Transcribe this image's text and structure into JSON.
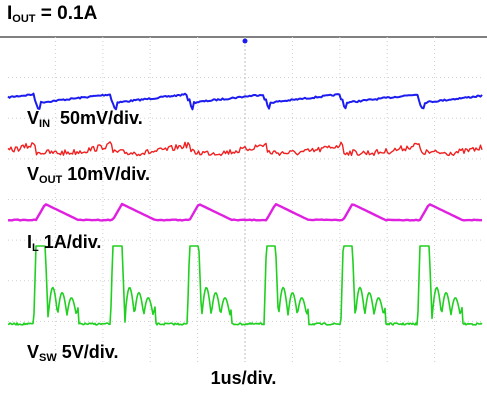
{
  "title": {
    "main": "I",
    "sub": "OUT",
    "rest": " = 0.1A"
  },
  "chart_data": {
    "type": "line",
    "title": "IOUT = 0.1A",
    "xlabel": "1us/div.",
    "x_divisions": 10,
    "switching_period_div": 1.62,
    "grid": true,
    "colors": {
      "vin": "#1c1cf0",
      "vout": "#f02020",
      "il": "#e020e0",
      "vsw": "#20d020",
      "grid": "#cfcfcf",
      "trigger": "#1c1cf0"
    },
    "series": [
      {
        "name": "VIN",
        "scale": "50mV/div."
      },
      {
        "name": "VOUT",
        "scale": "10mV/div."
      },
      {
        "name": "IL",
        "scale": "1A/div."
      },
      {
        "name": "VSW",
        "scale": "5V/div."
      }
    ]
  },
  "labels": {
    "vin": {
      "main": "V",
      "sub": "IN",
      "rest": "  50mV/div."
    },
    "vout": {
      "main": "V",
      "sub": "OUT",
      "rest": " 10mV/div."
    },
    "il": {
      "main": "I",
      "sub": "L",
      "rest": " 1A/div."
    },
    "vsw": {
      "main": "V",
      "sub": "SW",
      "rest": " 5V/div."
    },
    "time": "1us/div."
  }
}
